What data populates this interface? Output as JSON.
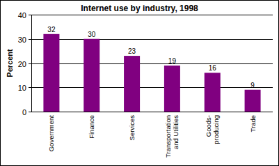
{
  "chart_data": {
    "type": "bar",
    "title": "Internet use by industry, 1998",
    "y_label": "Percent",
    "categories": [
      "Government",
      "Finance",
      "Services",
      "Transportation and Utilities",
      "Goods-producing",
      "Trade"
    ],
    "values": [
      32,
      30,
      23,
      19,
      16,
      9
    ],
    "color": "#800080",
    "ylim": [
      0,
      40
    ],
    "yticks": [
      0,
      10,
      20,
      30,
      40
    ],
    "grid": true,
    "data_labels": true
  }
}
